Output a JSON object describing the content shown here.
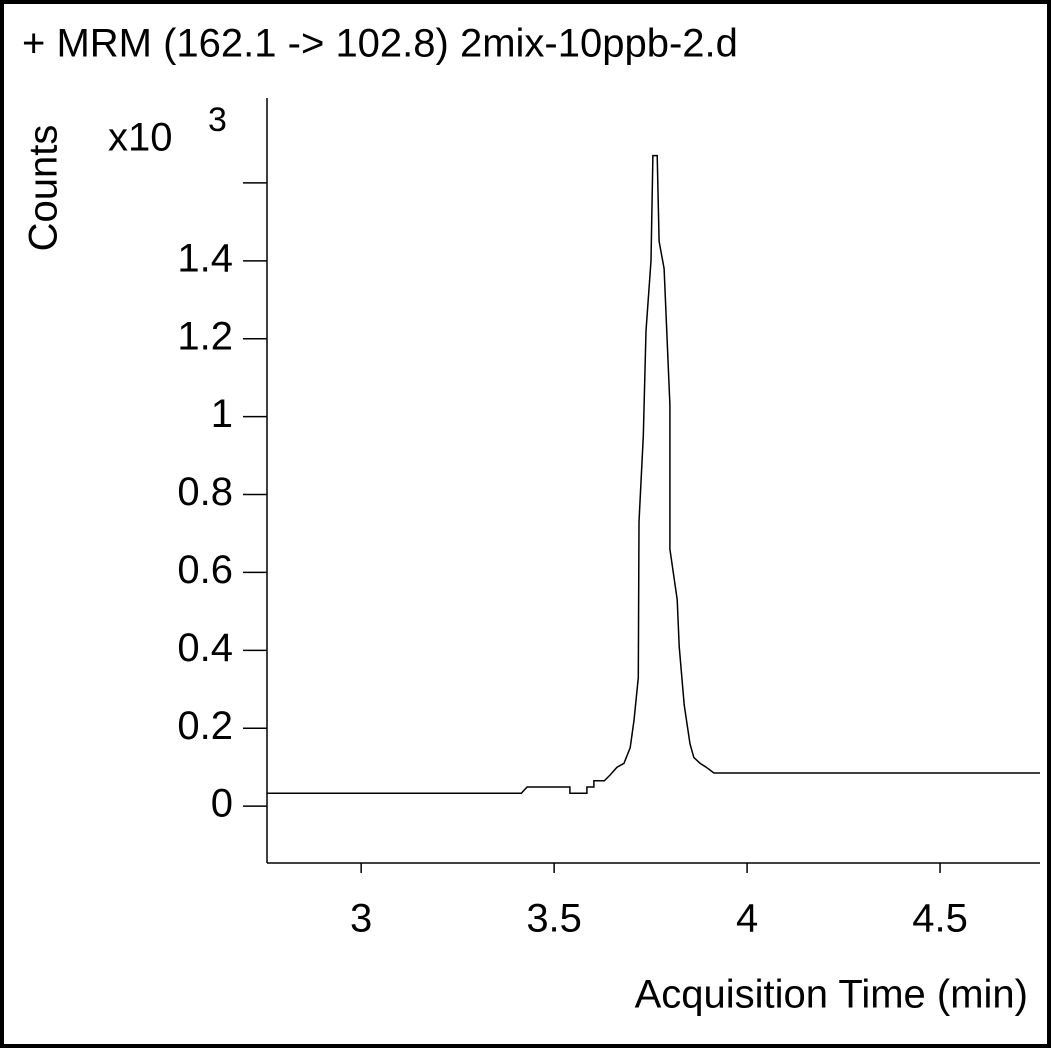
{
  "chart_data": {
    "type": "line",
    "title": "+ MRM (162.1 -> 102.8) 2mix-10ppb-2.d",
    "y_label": "Counts",
    "y_multiplier": "x10",
    "y_exponent": "3",
    "x_label": "Acquisition Time (min)",
    "color": "#000000",
    "x": [
      2.756,
      3.415,
      3.43,
      3.541,
      3.541,
      3.585,
      3.585,
      3.603,
      3.603,
      3.63,
      3.645,
      3.663,
      3.681,
      3.697,
      3.707,
      3.718,
      3.72,
      3.731,
      3.738,
      3.751,
      3.756,
      3.767,
      3.772,
      3.785,
      3.8,
      3.8,
      3.819,
      3.824,
      3.837,
      3.852,
      3.862,
      3.878,
      3.894,
      3.914,
      4.759
    ],
    "values": [
      0.033,
      0.033,
      0.049,
      0.049,
      0.033,
      0.033,
      0.049,
      0.049,
      0.065,
      0.065,
      0.08,
      0.1,
      0.11,
      0.15,
      0.22,
      0.33,
      0.73,
      0.95,
      1.22,
      1.4,
      1.67,
      1.67,
      1.45,
      1.38,
      1.03,
      0.66,
      0.53,
      0.41,
      0.26,
      0.16,
      0.125,
      0.11,
      0.1,
      0.085,
      0.085
    ],
    "xlim": [
      2.756,
      4.759
    ],
    "ylim": [
      -0.146,
      1.818
    ],
    "xticks": [
      3,
      3.5,
      4,
      4.5
    ],
    "yticks": [
      0,
      0.2,
      0.4,
      0.6,
      0.8,
      1,
      1.2,
      1.4,
      {
        "value": 1.6,
        "label": null
      }
    ]
  }
}
